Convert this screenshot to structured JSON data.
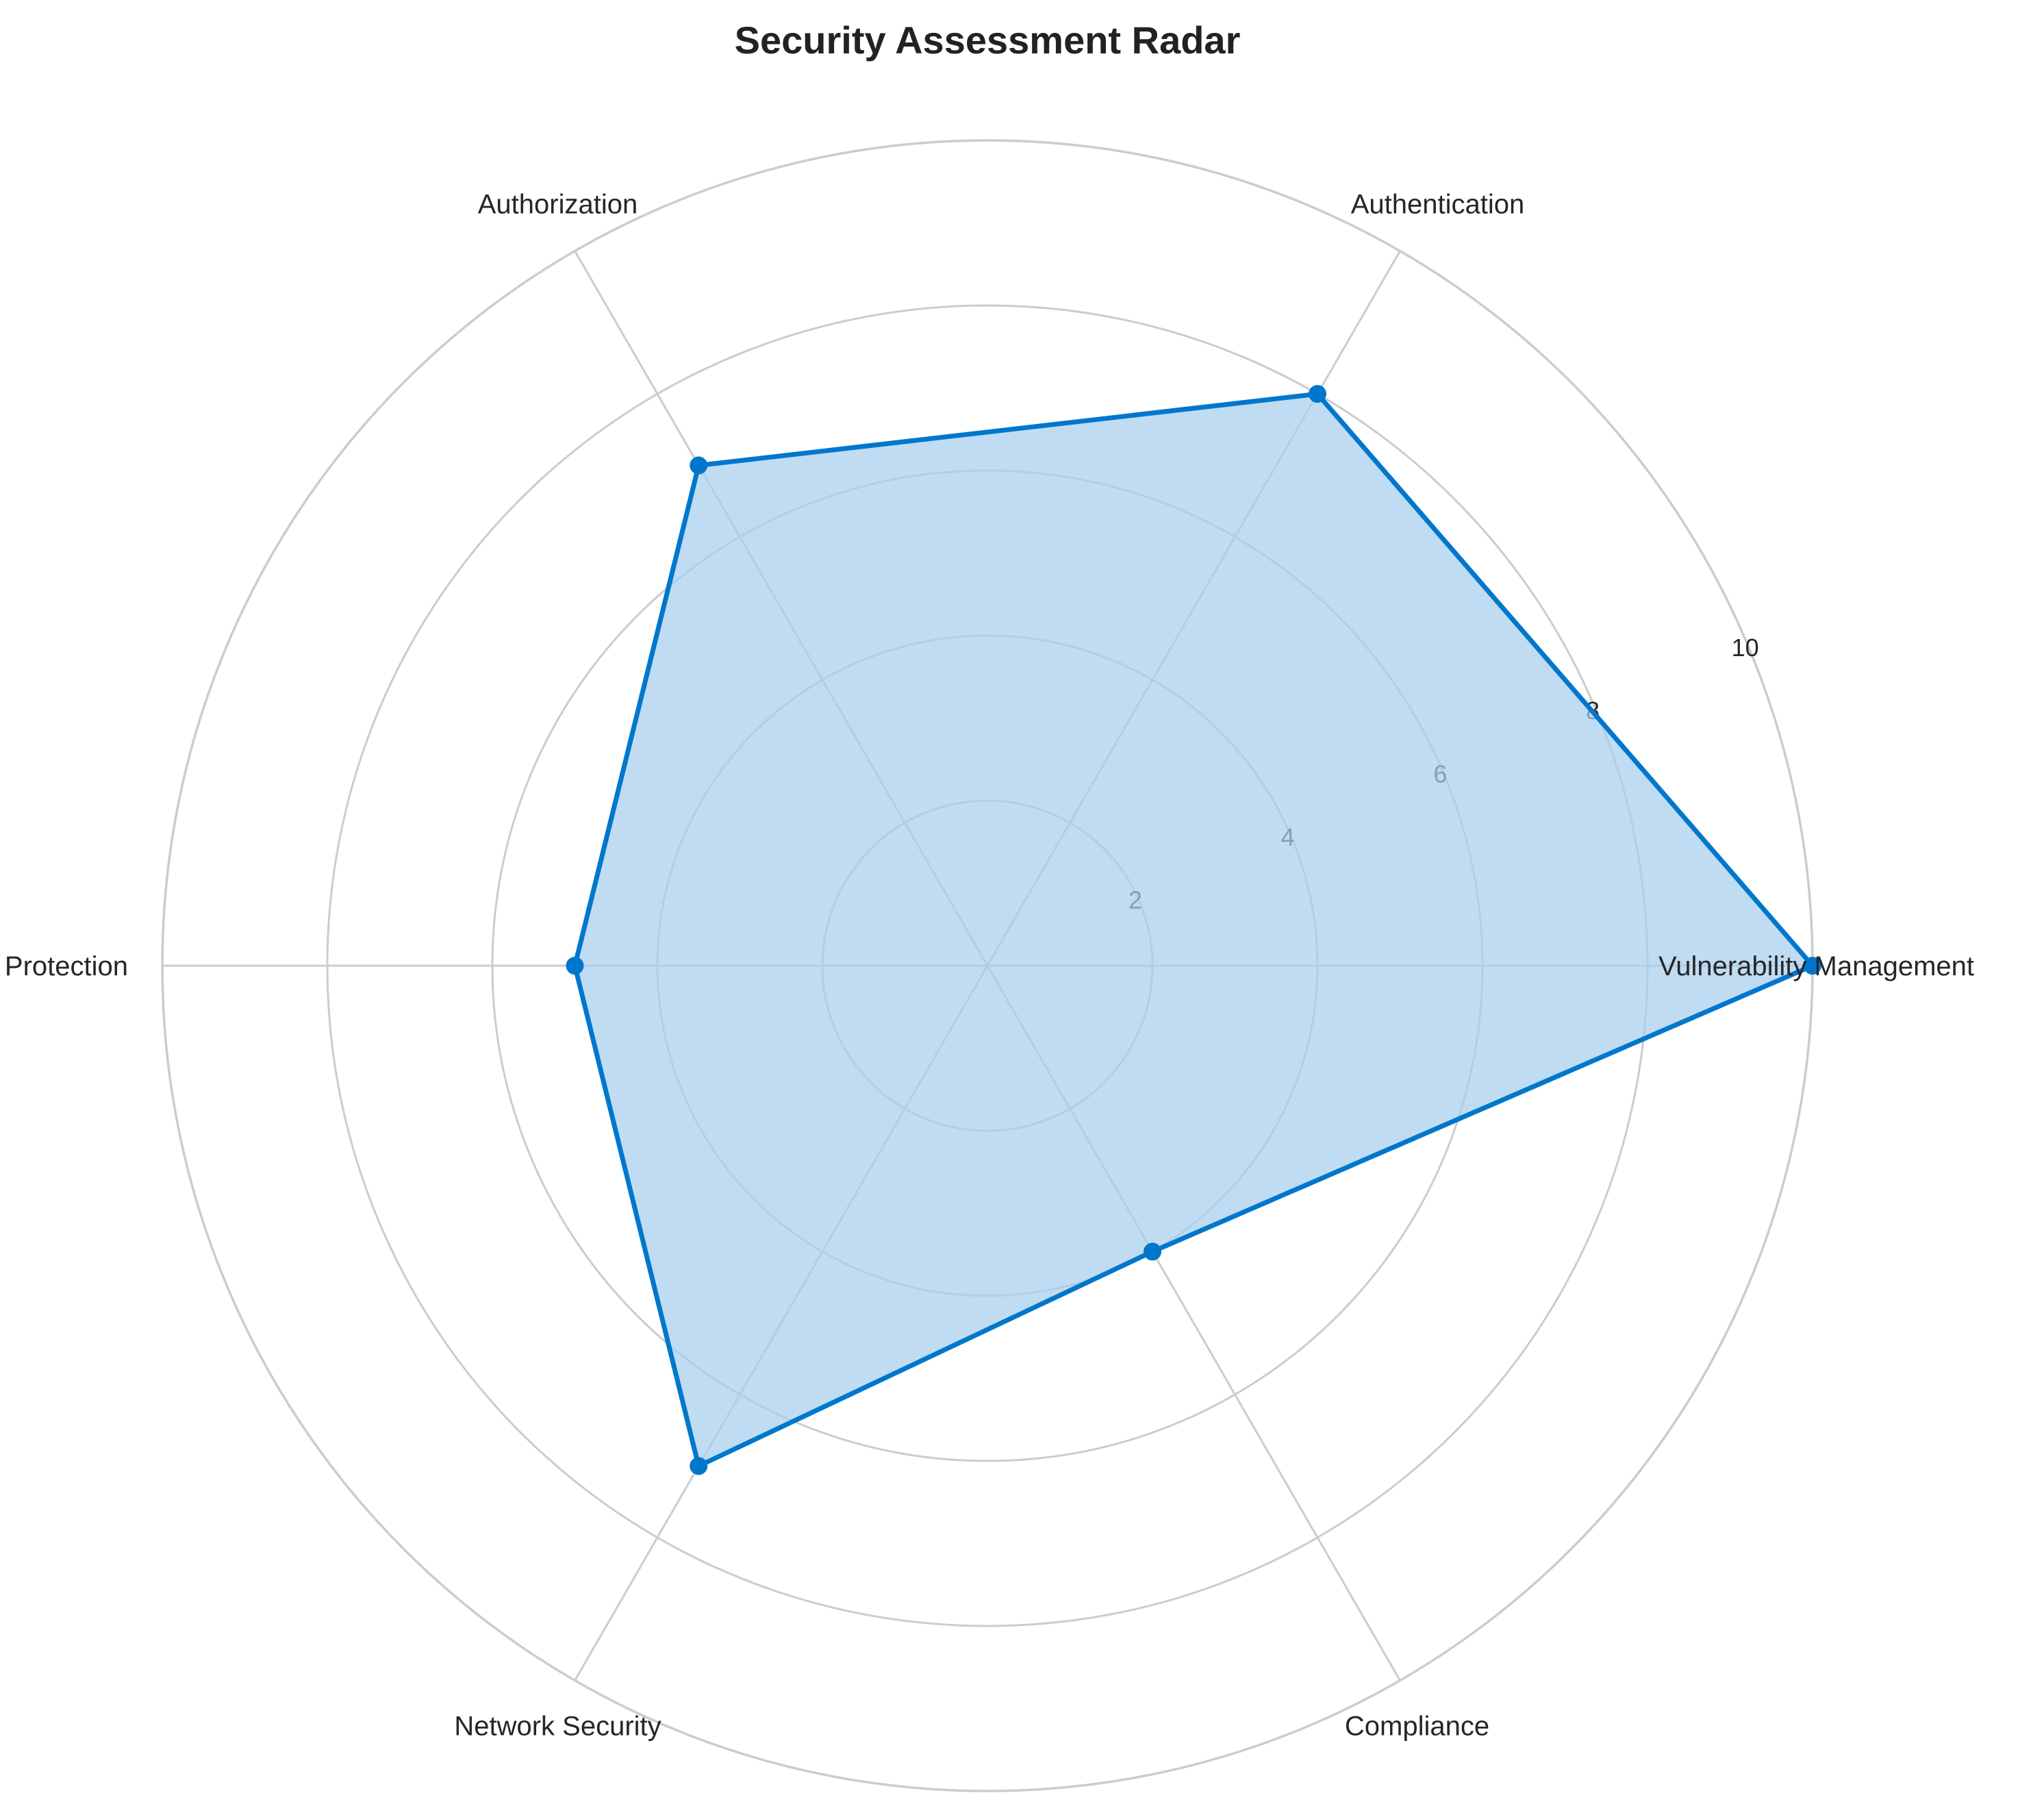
{
  "chart_data": {
    "type": "radar",
    "title": "Security Assessment Radar",
    "categories": [
      "Vulnerability Management",
      "Authentication",
      "Authorization",
      "Data Protection",
      "Network Security",
      "Compliance"
    ],
    "series": [
      {
        "values": [
          10,
          8,
          7,
          5,
          7,
          4
        ],
        "color": "#0077cc",
        "fill_color": "#a6cfee"
      }
    ],
    "rlim": [
      0,
      10
    ],
    "rticks": [
      2,
      4,
      6,
      8,
      10
    ],
    "rtick_labels": [
      "2",
      "4",
      "6",
      "8",
      "10"
    ],
    "grid": true,
    "grid_color": "#cccccc",
    "marker": "circle"
  }
}
